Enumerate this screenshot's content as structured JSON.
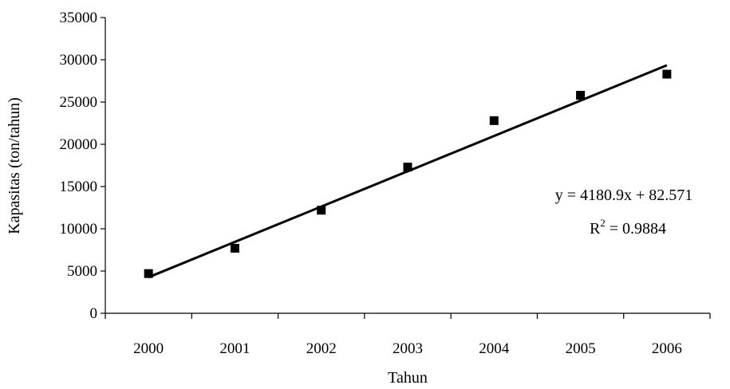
{
  "chart_data": {
    "type": "scatter",
    "xlabel": "Tahun",
    "ylabel": "Kapasitas (ton/tahun)",
    "categories": [
      "2000",
      "2001",
      "2002",
      "2003",
      "2004",
      "2005",
      "2006"
    ],
    "x": [
      2000,
      2001,
      2002,
      2003,
      2004,
      2005,
      2006
    ],
    "series": [
      {
        "values": [
          4700,
          7700,
          12200,
          17300,
          22800,
          25800,
          28300
        ]
      }
    ],
    "ylim": [
      0,
      35000
    ],
    "yticks": [
      0,
      5000,
      10000,
      15000,
      20000,
      25000,
      30000,
      35000
    ],
    "ytick_labels": [
      "0",
      "5000",
      "10000",
      "15000",
      "20000",
      "25000",
      "30000",
      "35000"
    ],
    "trendline": {
      "type": "linear",
      "slope": 4180.9,
      "intercept": 82.571,
      "equation": "y = 4180.9x + 82.571",
      "r2_label": "R",
      "r2_exponent": "2",
      "r2_value": " = 0.9884"
    },
    "grid": false,
    "legend": "none",
    "marker_color": "#000000",
    "line_color": "#000000"
  }
}
